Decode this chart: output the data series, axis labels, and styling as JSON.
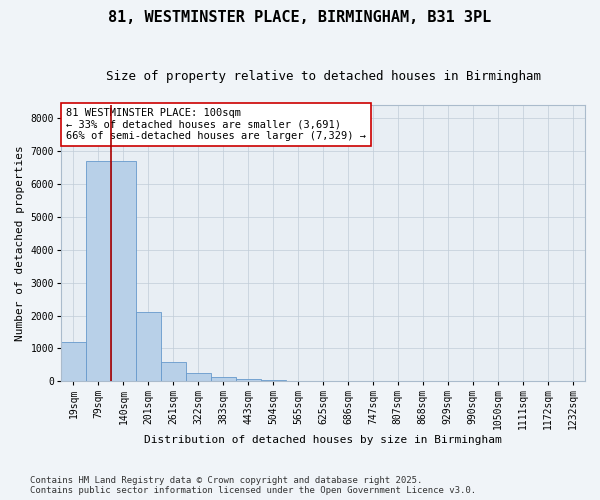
{
  "title": "81, WESTMINSTER PLACE, BIRMINGHAM, B31 3PL",
  "subtitle": "Size of property relative to detached houses in Birmingham",
  "xlabel": "Distribution of detached houses by size in Birmingham",
  "ylabel": "Number of detached properties",
  "categories": [
    "19sqm",
    "79sqm",
    "140sqm",
    "201sqm",
    "261sqm",
    "322sqm",
    "383sqm",
    "443sqm",
    "504sqm",
    "565sqm",
    "625sqm",
    "686sqm",
    "747sqm",
    "807sqm",
    "868sqm",
    "929sqm",
    "990sqm",
    "1050sqm",
    "1111sqm",
    "1172sqm",
    "1232sqm"
  ],
  "values": [
    1200,
    6700,
    6700,
    2100,
    580,
    260,
    130,
    80,
    50,
    25,
    10,
    5,
    3,
    2,
    1,
    0,
    0,
    0,
    0,
    0,
    0
  ],
  "bar_color": "#b8d0e8",
  "bar_edge_color": "#6699cc",
  "vline_color": "#aa0000",
  "annotation_text": "81 WESTMINSTER PLACE: 100sqm\n← 33% of detached houses are smaller (3,691)\n66% of semi-detached houses are larger (7,329) →",
  "annotation_box_facecolor": "#ffffff",
  "annotation_box_edgecolor": "#cc0000",
  "background_color": "#f0f4f8",
  "plot_bg_color": "#e8eef4",
  "grid_color": "#c0ccd8",
  "ylim": [
    0,
    8400
  ],
  "yticks": [
    0,
    1000,
    2000,
    3000,
    4000,
    5000,
    6000,
    7000,
    8000
  ],
  "footer_line1": "Contains HM Land Registry data © Crown copyright and database right 2025.",
  "footer_line2": "Contains public sector information licensed under the Open Government Licence v3.0.",
  "title_fontsize": 11,
  "subtitle_fontsize": 9,
  "axis_label_fontsize": 8,
  "tick_fontsize": 7,
  "annotation_fontsize": 7.5,
  "footer_fontsize": 6.5
}
